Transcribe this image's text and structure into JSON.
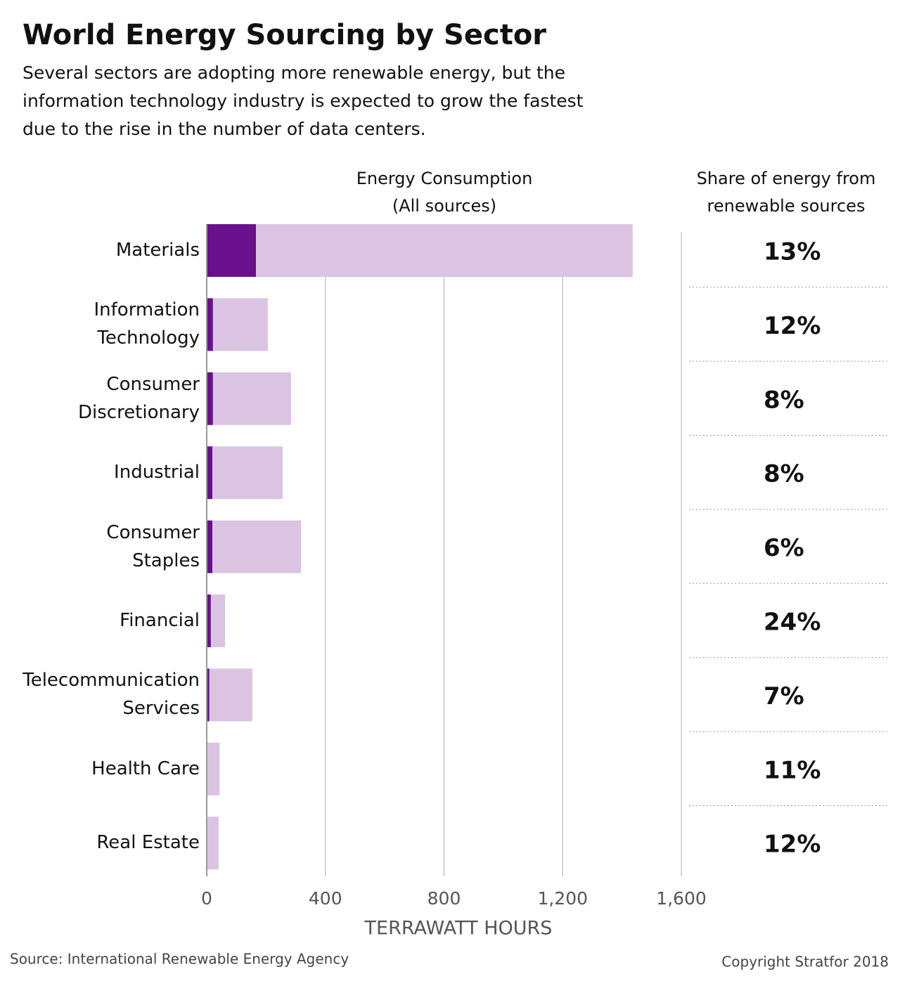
{
  "chart_data": {
    "type": "stacked-bar-h",
    "title": "World Energy Sourcing by Sector",
    "subtitle": "Several sectors are adopting more renewable energy, but the information technology industry is expected to grow the fastest due to the rise in the number of data centers.",
    "header_left": [
      "Energy Consumption",
      "(All sources)"
    ],
    "header_right": [
      "Share of energy from",
      "renewable sources"
    ],
    "categories": [
      "Materials",
      "Information Technology",
      "Consumer Discretionary",
      "Industrial",
      "Consumer Staples",
      "Financial",
      "Telecommunication Services",
      "Health Care",
      "Real Estate"
    ],
    "series": [
      {
        "color": "#6a0f8e",
        "values": [
          166,
          21,
          21,
          19,
          19,
          14,
          9,
          2,
          2
        ]
      },
      {
        "color": "#dbc3e2",
        "values": [
          1270,
          185,
          263,
          237,
          299,
          48,
          145,
          41,
          38
        ]
      }
    ],
    "share": {
      "values": [
        13,
        12,
        8,
        8,
        6,
        24,
        7,
        11,
        12
      ],
      "value_labels": [
        "13%",
        "12%",
        "8%",
        "8%",
        "6%",
        "24%",
        "7%",
        "11%",
        "12%"
      ]
    },
    "xlim": [
      0,
      1600
    ],
    "xticks": [
      0,
      400,
      800,
      {
        "value": 1200,
        "label": "1,200"
      },
      {
        "value": 1600,
        "label": "1,600"
      }
    ],
    "xlabel": "TERRAWATT HOURS",
    "grid": true,
    "source": "Source: International Renewable Energy Agency",
    "copyright": "Copyright Stratfor 2018"
  }
}
